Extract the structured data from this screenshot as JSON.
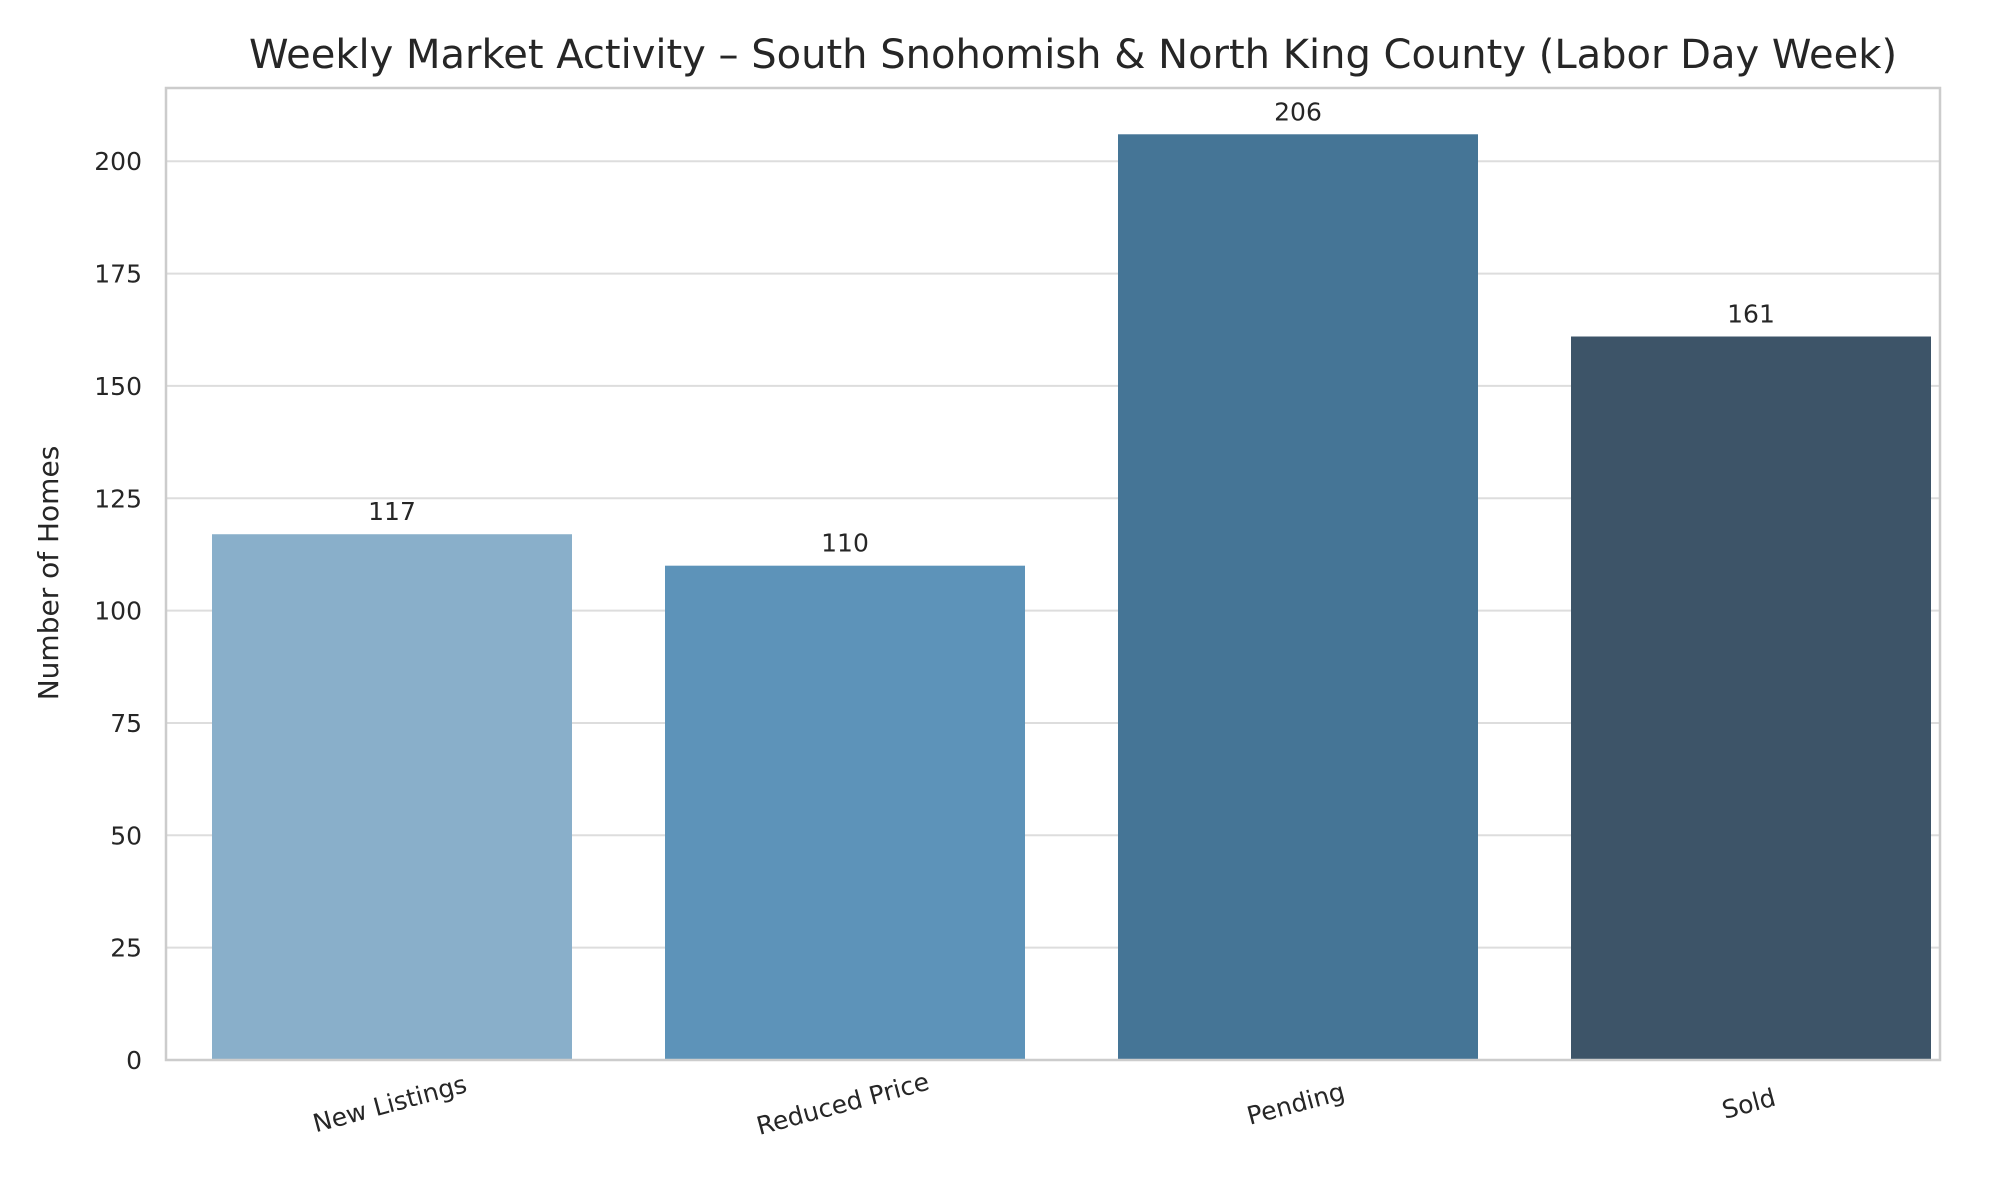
{
  "chart_data": {
    "type": "bar",
    "title": "Weekly Market Activity – South Snohomish & North King County (Labor Day Week)",
    "xlabel": "",
    "ylabel": "Number of Homes",
    "categories": [
      "New Listings",
      "Reduced Price",
      "Pending",
      "Sold"
    ],
    "values": [
      117,
      110,
      206,
      161
    ],
    "value_labels": [
      "117",
      "110",
      "206",
      "161"
    ],
    "colors": [
      "#89afca",
      "#5d93b9",
      "#457596",
      "#3d5468"
    ],
    "ylim": [
      0,
      216.3
    ],
    "yticks": [
      0,
      25,
      50,
      75,
      100,
      125,
      150,
      175,
      200
    ],
    "ytick_labels": [
      "0",
      "25",
      "50",
      "75",
      "100",
      "125",
      "150",
      "175",
      "200"
    ],
    "grid": true,
    "legend": "none"
  }
}
